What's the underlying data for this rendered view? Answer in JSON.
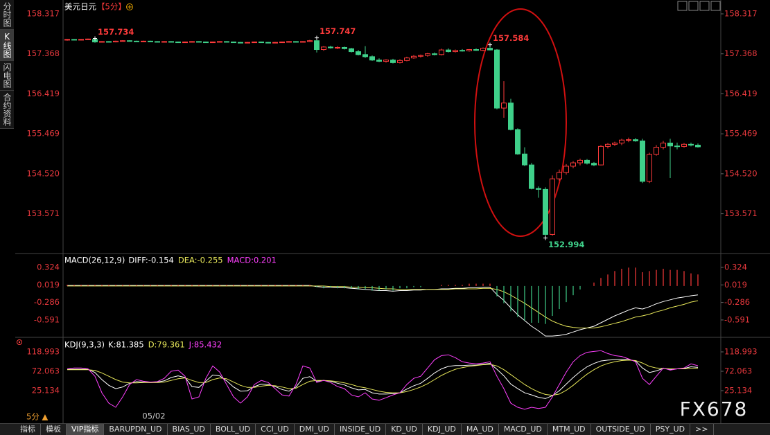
{
  "header": {
    "symbol": "美元日元",
    "period": "【5分】"
  },
  "sidebar": {
    "tabs": [
      "分时图",
      "K线图",
      "闪电图",
      "合约资料"
    ],
    "selected": 1
  },
  "chart_data": [
    {
      "type": "candlestick",
      "categories": [
        null,
        null,
        null,
        null,
        null,
        null,
        null,
        null,
        null,
        null,
        null,
        null,
        null,
        "05/02",
        null,
        null,
        null,
        null,
        null,
        null,
        null,
        null,
        null,
        null,
        null,
        null,
        null,
        null,
        null,
        null,
        null,
        null,
        null,
        null,
        null,
        null,
        null,
        null,
        null,
        null,
        null,
        null,
        null,
        null,
        null,
        null,
        null,
        null,
        null,
        null,
        null,
        null,
        null,
        null,
        null,
        null,
        null,
        null,
        null,
        null,
        null,
        null,
        null,
        null,
        null,
        null,
        null,
        null,
        null,
        null,
        null,
        null,
        null,
        null,
        null,
        null,
        null,
        null,
        null,
        null,
        null,
        null,
        null,
        null,
        null,
        null,
        null,
        null,
        null,
        null,
        null,
        null
      ],
      "open": [
        157.7,
        157.71,
        157.7,
        157.71,
        157.71,
        157.65,
        157.66,
        157.65,
        157.67,
        157.68,
        157.67,
        157.66,
        157.67,
        157.66,
        157.65,
        157.66,
        157.65,
        157.64,
        157.65,
        157.66,
        157.65,
        157.64,
        157.65,
        157.66,
        157.65,
        157.64,
        157.63,
        157.64,
        157.65,
        157.64,
        157.63,
        157.64,
        157.65,
        157.66,
        157.65,
        157.66,
        157.68,
        157.47,
        157.53,
        157.51,
        157.52,
        157.49,
        157.42,
        157.35,
        157.3,
        157.22,
        157.19,
        157.22,
        157.16,
        157.21,
        157.27,
        157.31,
        157.33,
        157.37,
        157.35,
        157.46,
        157.42,
        157.45,
        157.44,
        157.47,
        157.45,
        157.5,
        157.46,
        156.08,
        156.2,
        155.57,
        154.99,
        154.73,
        154.17,
        154.15,
        153.08,
        154.4,
        154.55,
        154.7,
        154.78,
        154.84,
        154.77,
        154.73,
        155.17,
        155.22,
        155.25,
        155.32,
        155.33,
        155.3,
        154.34,
        154.98,
        155.15,
        155.25,
        155.18,
        155.17,
        155.22,
        155.2
      ],
      "high": [
        157.72,
        157.72,
        157.72,
        157.73,
        157.734,
        157.67,
        157.67,
        157.68,
        157.69,
        157.69,
        157.68,
        157.68,
        157.68,
        157.67,
        157.67,
        157.67,
        157.66,
        157.66,
        157.67,
        157.67,
        157.66,
        157.66,
        157.67,
        157.67,
        157.66,
        157.65,
        157.65,
        157.66,
        157.66,
        157.65,
        157.65,
        157.66,
        157.67,
        157.67,
        157.67,
        157.7,
        157.747,
        157.55,
        157.56,
        157.55,
        157.54,
        157.51,
        157.46,
        157.55,
        157.33,
        157.26,
        157.24,
        157.25,
        157.24,
        157.3,
        157.34,
        157.35,
        157.39,
        157.4,
        157.49,
        157.5,
        157.47,
        157.48,
        157.48,
        157.5,
        157.52,
        157.584,
        157.48,
        156.72,
        156.3,
        155.6,
        155.15,
        154.78,
        154.22,
        154.2,
        154.48,
        154.62,
        154.75,
        154.82,
        154.88,
        154.87,
        154.8,
        155.2,
        155.25,
        155.28,
        155.35,
        155.38,
        155.37,
        155.35,
        155.02,
        155.2,
        155.3,
        155.35,
        155.26,
        155.25,
        155.26,
        155.24
      ],
      "low": [
        157.68,
        157.69,
        157.69,
        157.7,
        157.63,
        157.64,
        157.64,
        157.64,
        157.66,
        157.66,
        157.65,
        157.65,
        157.66,
        157.64,
        157.64,
        157.65,
        157.63,
        157.63,
        157.64,
        157.64,
        157.63,
        157.63,
        157.64,
        157.65,
        157.63,
        157.62,
        157.62,
        157.63,
        157.63,
        157.62,
        157.62,
        157.63,
        157.64,
        157.64,
        157.64,
        157.65,
        157.4,
        157.44,
        157.49,
        157.48,
        157.47,
        157.4,
        157.33,
        157.27,
        157.2,
        157.17,
        157.16,
        157.14,
        157.14,
        157.19,
        157.25,
        157.28,
        157.3,
        157.33,
        157.33,
        157.4,
        157.4,
        157.42,
        157.42,
        157.44,
        157.43,
        157.45,
        156.05,
        155.85,
        155.55,
        154.97,
        154.7,
        154.15,
        153.95,
        152.994,
        153.05,
        154.35,
        154.5,
        154.65,
        154.72,
        154.74,
        154.7,
        154.72,
        155.12,
        155.18,
        155.2,
        155.27,
        155.28,
        154.3,
        154.3,
        154.95,
        155.1,
        154.42,
        155.1,
        155.14,
        155.17,
        155.14
      ],
      "close": [
        157.71,
        157.7,
        157.71,
        157.72,
        157.65,
        157.66,
        157.65,
        157.67,
        157.68,
        157.67,
        157.66,
        157.67,
        157.66,
        157.65,
        157.66,
        157.65,
        157.64,
        157.65,
        157.66,
        157.65,
        157.64,
        157.65,
        157.66,
        157.65,
        157.64,
        157.63,
        157.64,
        157.65,
        157.64,
        157.63,
        157.64,
        157.65,
        157.66,
        157.65,
        157.66,
        157.68,
        157.47,
        157.53,
        157.51,
        157.52,
        157.49,
        157.42,
        157.35,
        157.3,
        157.22,
        157.19,
        157.22,
        157.16,
        157.21,
        157.27,
        157.31,
        157.33,
        157.37,
        157.35,
        157.46,
        157.42,
        157.45,
        157.44,
        157.47,
        157.45,
        157.5,
        157.46,
        156.08,
        156.2,
        155.57,
        154.99,
        154.73,
        154.17,
        154.15,
        153.08,
        154.4,
        154.55,
        154.7,
        154.78,
        154.84,
        154.77,
        154.73,
        155.17,
        155.22,
        155.25,
        155.32,
        155.33,
        155.3,
        154.34,
        154.98,
        155.15,
        155.25,
        155.18,
        155.17,
        155.22,
        155.2,
        155.16
      ],
      "up_color": "#ff3b3b",
      "down_color": "#3fd08a",
      "ylim": [
        152.643,
        158.564
      ],
      "yticks": [
        153.571,
        {
          "value": 154.52,
          "label": "154.520"
        },
        155.469,
        156.419,
        157.368,
        158.317
      ],
      "grid": false,
      "annotations": [
        {
          "text": "157.734",
          "index": 4,
          "value": 157.734
        },
        {
          "text": "157.747",
          "index": 36,
          "value": 157.747
        },
        {
          "text": "157.584",
          "index": 61,
          "value": 157.584
        },
        {
          "text": "152.994",
          "index": 69,
          "value": 152.994
        }
      ]
    },
    {
      "type": "indicator",
      "title": "MACD(26,12,9)",
      "ylim": [
        -0.881,
        0.541
      ],
      "yticks": [
        -0.591,
        -0.286,
        0.019,
        0.324
      ],
      "series": [
        {
          "name": "DIFF:-0.154",
          "style": "line",
          "color": "#ffffff",
          "values": [
            0.01,
            0.01,
            0.01,
            0.01,
            0.01,
            0.01,
            0.01,
            0.01,
            0.01,
            0.01,
            0.01,
            0.01,
            0.01,
            0.01,
            0.01,
            0.01,
            0.01,
            0.01,
            0.01,
            0.01,
            0.01,
            0.01,
            0.01,
            0.01,
            0.01,
            0.01,
            0.01,
            0.01,
            0.01,
            0.01,
            0.01,
            0.01,
            0.01,
            0.01,
            0.01,
            0.01,
            -0.01,
            -0.02,
            -0.02,
            -0.03,
            -0.03,
            -0.04,
            -0.05,
            -0.06,
            -0.07,
            -0.08,
            -0.08,
            -0.09,
            -0.08,
            -0.08,
            -0.07,
            -0.07,
            -0.06,
            -0.06,
            -0.05,
            -0.05,
            -0.04,
            -0.04,
            -0.03,
            -0.03,
            -0.02,
            -0.02,
            -0.15,
            -0.25,
            -0.38,
            -0.5,
            -0.6,
            -0.7,
            -0.78,
            -0.87,
            -0.87,
            -0.86,
            -0.84,
            -0.8,
            -0.76,
            -0.73,
            -0.7,
            -0.64,
            -0.58,
            -0.52,
            -0.47,
            -0.42,
            -0.38,
            -0.4,
            -0.36,
            -0.31,
            -0.27,
            -0.24,
            -0.21,
            -0.19,
            -0.17,
            -0.154
          ]
        },
        {
          "name": "DEA:-0.255",
          "style": "line",
          "color": "#e8e85a",
          "values": [
            0,
            0,
            0,
            0,
            0,
            0,
            0,
            0,
            0,
            0,
            0,
            0,
            0,
            0,
            0,
            0,
            0,
            0,
            0,
            0,
            0,
            0,
            0,
            0,
            0,
            0,
            0,
            0,
            0,
            0,
            0,
            0,
            0,
            0,
            0,
            0,
            0,
            0,
            -0.01,
            -0.01,
            -0.01,
            -0.02,
            -0.02,
            -0.03,
            -0.03,
            -0.04,
            -0.05,
            -0.05,
            -0.06,
            -0.06,
            -0.06,
            -0.06,
            -0.06,
            -0.06,
            -0.06,
            -0.06,
            -0.05,
            -0.05,
            -0.05,
            -0.05,
            -0.04,
            -0.04,
            -0.06,
            -0.1,
            -0.16,
            -0.23,
            -0.3,
            -0.38,
            -0.46,
            -0.54,
            -0.61,
            -0.66,
            -0.7,
            -0.72,
            -0.73,
            -0.73,
            -0.73,
            -0.71,
            -0.68,
            -0.65,
            -0.62,
            -0.58,
            -0.54,
            -0.52,
            -0.49,
            -0.45,
            -0.42,
            -0.38,
            -0.35,
            -0.32,
            -0.28,
            -0.255
          ]
        },
        {
          "name": "MACD:0.201",
          "style": "histogram",
          "color": "#ff40ff",
          "up_color": "#ff3b3b",
          "down_color": "#3fd08a",
          "values": [
            0.02,
            0.02,
            0.02,
            0.02,
            0.02,
            0.02,
            0.02,
            0.02,
            0.02,
            0.02,
            0.02,
            0.02,
            0.02,
            0.02,
            0.02,
            0.02,
            0.02,
            0.02,
            0.02,
            0.02,
            0.02,
            0.02,
            0.02,
            0.02,
            0.02,
            0.02,
            0.02,
            0.02,
            0.02,
            0.02,
            0.02,
            0.02,
            0.02,
            0.02,
            0.02,
            0.02,
            -0.02,
            -0.04,
            -0.02,
            -0.04,
            -0.04,
            -0.04,
            -0.06,
            -0.06,
            -0.08,
            -0.08,
            -0.06,
            -0.08,
            -0.04,
            -0.04,
            -0.02,
            -0.02,
            0,
            0,
            0.02,
            0.02,
            0.02,
            0.02,
            0.04,
            0.04,
            0.04,
            0.04,
            -0.18,
            -0.3,
            -0.44,
            -0.54,
            -0.6,
            -0.64,
            -0.64,
            -0.66,
            -0.52,
            -0.4,
            -0.28,
            -0.16,
            -0.06,
            0,
            0.06,
            0.14,
            0.2,
            0.26,
            0.3,
            0.32,
            0.32,
            0.24,
            0.26,
            0.28,
            0.3,
            0.28,
            0.28,
            0.26,
            0.22,
            0.201
          ]
        }
      ]
    },
    {
      "type": "indicator",
      "title": "KDJ(9,3,3)",
      "ylim": [
        -43.57,
        149.16
      ],
      "yticks": [
        25.134,
        72.063,
        118.993
      ],
      "series": [
        {
          "name": "K:81.385",
          "style": "line",
          "color": "#ffffff",
          "values": [
            77,
            77,
            77,
            77,
            69,
            52,
            38,
            30,
            34,
            43,
            47,
            46,
            45,
            46,
            49,
            57,
            61,
            57,
            35,
            33,
            48,
            63,
            61,
            49,
            34,
            24,
            25,
            35,
            41,
            40,
            35,
            28,
            24,
            34,
            55,
            59,
            48,
            50,
            48,
            43,
            39,
            32,
            27,
            28,
            20,
            17,
            17,
            18,
            20,
            29,
            37,
            43,
            55,
            68,
            78,
            84,
            86,
            86,
            87,
            87,
            89,
            91,
            77,
            61,
            41,
            30,
            20,
            15,
            9,
            6,
            13,
            25,
            41,
            57,
            71,
            83,
            91,
            97,
            99,
            100,
            101,
            100,
            97,
            80,
            69,
            73,
            79,
            77,
            78,
            79,
            83,
            81.385
          ]
        },
        {
          "name": "D:79.361",
          "style": "line",
          "color": "#e8e85a",
          "values": [
            76,
            76,
            76,
            76,
            74,
            68,
            60,
            52,
            46,
            44,
            44,
            45,
            45,
            45,
            46,
            50,
            54,
            56,
            50,
            45,
            45,
            52,
            56,
            54,
            46,
            38,
            33,
            33,
            36,
            38,
            37,
            34,
            30,
            31,
            40,
            48,
            50,
            50,
            49,
            47,
            44,
            40,
            35,
            32,
            28,
            24,
            21,
            20,
            20,
            23,
            28,
            34,
            42,
            52,
            62,
            70,
            77,
            81,
            84,
            86,
            88,
            89,
            85,
            76,
            64,
            52,
            40,
            30,
            22,
            16,
            14,
            17,
            26,
            38,
            52,
            65,
            76,
            85,
            91,
            95,
            98,
            99,
            98,
            92,
            84,
            80,
            79,
            78,
            78,
            78,
            79,
            79.361
          ]
        },
        {
          "name": "J:85.432",
          "style": "line",
          "color": "#ff40ff",
          "values": [
            78,
            80,
            80,
            78,
            60,
            20,
            -5,
            -15,
            10,
            40,
            52,
            48,
            46,
            47,
            55,
            72,
            75,
            60,
            5,
            10,
            55,
            85,
            70,
            40,
            10,
            -5,
            10,
            40,
            50,
            45,
            30,
            15,
            12,
            40,
            85,
            80,
            45,
            50,
            45,
            35,
            30,
            15,
            10,
            20,
            5,
            2,
            8,
            15,
            20,
            40,
            55,
            60,
            80,
            100,
            110,
            112,
            105,
            95,
            92,
            90,
            92,
            95,
            60,
            30,
            -5,
            -15,
            -20,
            -15,
            -18,
            -15,
            10,
            40,
            70,
            95,
            110,
            118,
            120,
            122,
            115,
            110,
            108,
            102,
            95,
            55,
            40,
            60,
            80,
            75,
            78,
            80,
            90,
            85.432
          ]
        }
      ]
    }
  ],
  "footer": {
    "period": "5分 ▲",
    "tabs": [
      "指标",
      "模板",
      "VIP指标",
      "BARUPDN_UD",
      "BIAS_UD",
      "BOLL_UD",
      "CCI_UD",
      "DMI_UD",
      "INSIDE_UD",
      "KD_UD",
      "KDJ_UD",
      "MA_UD",
      "MACD_UD",
      "MTM_UD",
      "OUTSIDE_UD",
      "PSY_UD",
      ">>"
    ],
    "selected": 2
  },
  "watermark": "FX678"
}
